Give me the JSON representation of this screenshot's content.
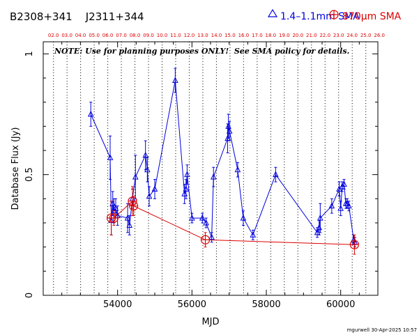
{
  "header": {
    "source_names": "B2308+341    J2311+344",
    "legend_low": "1.4–1.1mm SMA",
    "legend_high": "870μm SMA"
  },
  "note": "NOTE: Use for planning purposes ONLY!  See SMA policy for details.",
  "credit": "mgurwell 30-Apr-2025 10:57",
  "chart_data": {
    "type": "scatter",
    "xlabel": "MJD",
    "ylabel": "Database Flux (Jy)",
    "xlim": [
      52000,
      61000
    ],
    "ylim": [
      0,
      1.05
    ],
    "x_ticks": [
      54000,
      56000,
      58000,
      60000
    ],
    "y_ticks": [
      0,
      0.5,
      1
    ],
    "y_tick_labels": [
      "0",
      "0.5",
      "1"
    ],
    "grid": "vertical dotted lines at year boundaries",
    "top_axis_labels": [
      "02.0",
      "03.0",
      "04.0",
      "05.0",
      "06.0",
      "07.0",
      "08.0",
      "09.0",
      "10.0",
      "11.0",
      "12.0",
      "13.0",
      "14.0",
      "15.0",
      "16.0",
      "17.0",
      "18.0",
      "19.0",
      "20.0",
      "21.0",
      "22.0",
      "23.0",
      "24.0",
      "25.0",
      "26.0"
    ],
    "top_axis_mjd": [
      52275,
      52640,
      53005,
      53371,
      53736,
      54101,
      54466,
      54832,
      55197,
      55562,
      55927,
      56293,
      56658,
      57023,
      57388,
      57754,
      58119,
      58484,
      58849,
      59215,
      59580,
      59945,
      60310,
      60676,
      61041
    ],
    "colors": {
      "low": "#0000dd",
      "high": "#dd0000",
      "axis": "#000000"
    },
    "series": [
      {
        "name": "1.4–1.1mm SMA",
        "marker": "triangle",
        "points": [
          {
            "x": 53280,
            "y": 0.75,
            "err": 0.05
          },
          {
            "x": 53800,
            "y": 0.57,
            "err": 0.09
          },
          {
            "x": 53830,
            "y": 0.31,
            "err": 0.06
          },
          {
            "x": 53870,
            "y": 0.38,
            "err": 0.05
          },
          {
            "x": 53900,
            "y": 0.35,
            "err": 0.05
          },
          {
            "x": 53950,
            "y": 0.36,
            "err": 0.04
          },
          {
            "x": 54000,
            "y": 0.33,
            "err": 0.04
          },
          {
            "x": 54270,
            "y": 0.32,
            "err": 0.06
          },
          {
            "x": 54320,
            "y": 0.29,
            "err": 0.04
          },
          {
            "x": 54400,
            "y": 0.4,
            "err": 0.04
          },
          {
            "x": 54480,
            "y": 0.49,
            "err": 0.09
          },
          {
            "x": 54750,
            "y": 0.58,
            "err": 0.06
          },
          {
            "x": 54800,
            "y": 0.52,
            "err": 0.05
          },
          {
            "x": 54850,
            "y": 0.41,
            "err": 0.04
          },
          {
            "x": 55000,
            "y": 0.44,
            "err": 0.04
          },
          {
            "x": 55550,
            "y": 0.89,
            "err": 0.05
          },
          {
            "x": 55800,
            "y": 0.42,
            "err": 0.04
          },
          {
            "x": 55840,
            "y": 0.44,
            "err": 0.04
          },
          {
            "x": 55870,
            "y": 0.5,
            "err": 0.04
          },
          {
            "x": 56000,
            "y": 0.32,
            "err": 0.02
          },
          {
            "x": 56280,
            "y": 0.32,
            "err": 0.02
          },
          {
            "x": 56380,
            "y": 0.3,
            "err": 0.02
          },
          {
            "x": 56530,
            "y": 0.24,
            "err": 0.02
          },
          {
            "x": 56580,
            "y": 0.49,
            "err": 0.04
          },
          {
            "x": 56960,
            "y": 0.65,
            "err": 0.06
          },
          {
            "x": 56980,
            "y": 0.7,
            "err": 0.05
          },
          {
            "x": 57010,
            "y": 0.68,
            "err": 0.04
          },
          {
            "x": 57230,
            "y": 0.52,
            "err": 0.03
          },
          {
            "x": 57380,
            "y": 0.32,
            "err": 0.03
          },
          {
            "x": 57640,
            "y": 0.25,
            "err": 0.02
          },
          {
            "x": 58250,
            "y": 0.5,
            "err": 0.03
          },
          {
            "x": 59370,
            "y": 0.26,
            "err": 0.02
          },
          {
            "x": 59420,
            "y": 0.28,
            "err": 0.03
          },
          {
            "x": 59450,
            "y": 0.32,
            "err": 0.06
          },
          {
            "x": 59760,
            "y": 0.37,
            "err": 0.03
          },
          {
            "x": 59960,
            "y": 0.44,
            "err": 0.03
          },
          {
            "x": 60000,
            "y": 0.36,
            "err": 0.03
          },
          {
            "x": 60040,
            "y": 0.45,
            "err": 0.02
          },
          {
            "x": 60090,
            "y": 0.46,
            "err": 0.02
          },
          {
            "x": 60140,
            "y": 0.38,
            "err": 0.02
          },
          {
            "x": 60180,
            "y": 0.38,
            "err": 0.02
          },
          {
            "x": 60220,
            "y": 0.37,
            "err": 0.02
          },
          {
            "x": 60350,
            "y": 0.23,
            "err": 0.02
          },
          {
            "x": 60380,
            "y": 0.22,
            "err": 0.02
          }
        ]
      },
      {
        "name": "870μm SMA",
        "marker": "circle-plus",
        "points": [
          {
            "x": 53830,
            "y": 0.32,
            "err": 0.07
          },
          {
            "x": 53900,
            "y": 0.32,
            "err": 0.03
          },
          {
            "x": 54400,
            "y": 0.39,
            "err": 0.06
          },
          {
            "x": 54430,
            "y": 0.37,
            "err": 0.04
          },
          {
            "x": 56360,
            "y": 0.23,
            "err": 0.03
          },
          {
            "x": 60370,
            "y": 0.21,
            "err": 0.04
          }
        ]
      }
    ]
  }
}
